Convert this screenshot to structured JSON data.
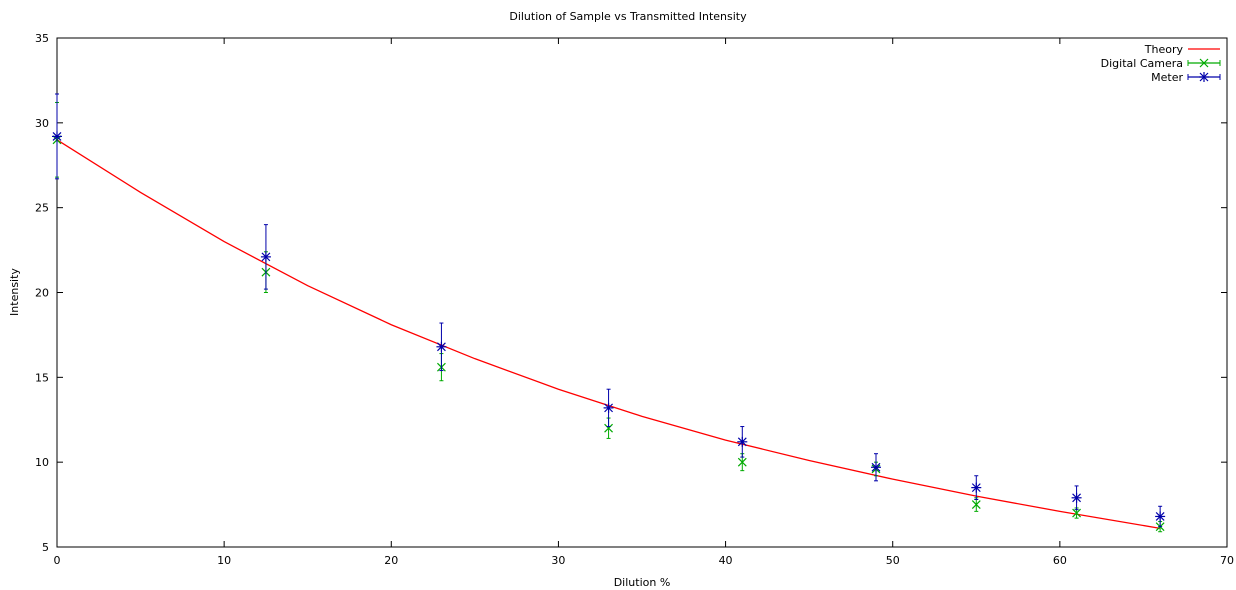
{
  "chart_data": {
    "type": "scatter",
    "title": "Dilution of Sample vs Transmitted Intensity",
    "xlabel": "Dilution %",
    "ylabel": "Intensity",
    "xlim": [
      0,
      70
    ],
    "ylim": [
      5,
      35
    ],
    "xticks": [
      "0",
      "10",
      "20",
      "30",
      "40",
      "50",
      "60",
      "70"
    ],
    "yticks": [
      "5",
      "10",
      "15",
      "20",
      "25",
      "30",
      "35"
    ],
    "grid": false,
    "legend_position": "top-right",
    "series": [
      {
        "name": "Theory",
        "kind": "line",
        "color": "#ff0000",
        "x": [
          0,
          5,
          10,
          15,
          20,
          25,
          30,
          35,
          40,
          45,
          50,
          55,
          60,
          66
        ],
        "y": [
          29.0,
          25.9,
          23.0,
          20.4,
          18.1,
          16.1,
          14.3,
          12.7,
          11.3,
          10.1,
          9.0,
          8.0,
          7.1,
          6.1
        ]
      },
      {
        "name": "Digital Camera",
        "kind": "points-errorbars",
        "marker": "x",
        "color": "#00aa00",
        "x": [
          0,
          12.5,
          23,
          33,
          41,
          49,
          55,
          61,
          66
        ],
        "y": [
          29.0,
          21.2,
          15.6,
          12.0,
          10.0,
          9.6,
          7.5,
          7.0,
          6.2
        ],
        "err": [
          2.2,
          1.2,
          0.8,
          0.6,
          0.5,
          0.4,
          0.4,
          0.3,
          0.3
        ]
      },
      {
        "name": "Meter",
        "kind": "points-errorbars",
        "marker": "star",
        "color": "#0000aa",
        "x": [
          0,
          12.5,
          23,
          33,
          41,
          49,
          55,
          61,
          66
        ],
        "y": [
          29.2,
          22.1,
          16.8,
          13.2,
          11.2,
          9.7,
          8.5,
          7.9,
          6.8
        ],
        "err": [
          2.5,
          1.9,
          1.4,
          1.1,
          0.9,
          0.8,
          0.7,
          0.7,
          0.6
        ]
      }
    ]
  }
}
